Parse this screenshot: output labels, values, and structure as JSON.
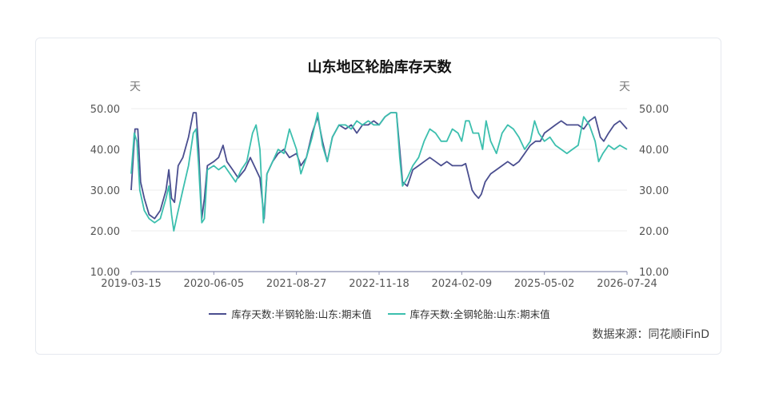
{
  "title": "山东地区轮胎库存天数",
  "left_unit": "天",
  "right_unit": "天",
  "source": "数据来源：同花顺iFinD",
  "colors": {
    "semi": "#4a4e8f",
    "full": "#3cbfae",
    "grid": "#ececec",
    "axis": "#8a8fb0"
  },
  "chart_data": {
    "type": "line",
    "title": "山东地区轮胎库存天数",
    "ylabel": "天",
    "ylim": [
      10,
      50
    ],
    "yticks": [
      "10.00",
      "20.00",
      "30.00",
      "40.00",
      "50.00"
    ],
    "x_range": [
      "2019-03-15",
      "2026-07-24"
    ],
    "xticks": [
      "2019-03-15",
      "2020-06-05",
      "2021-08-27",
      "2022-11-18",
      "2024-02-09",
      "2025-05-02",
      "2026-07-24"
    ],
    "grid": true,
    "legend_position": "bottom",
    "series": [
      {
        "name": "库存天数:半钢轮胎:山东:期末值",
        "color": "#4a4e8f",
        "points": [
          [
            "2019-03-15",
            30.0
          ],
          [
            "2019-04-05",
            45.0
          ],
          [
            "2019-04-20",
            45.0
          ],
          [
            "2019-05-05",
            32.0
          ],
          [
            "2019-05-25",
            28.0
          ],
          [
            "2019-06-20",
            24.0
          ],
          [
            "2019-07-20",
            23.0
          ],
          [
            "2019-08-20",
            25.0
          ],
          [
            "2019-09-20",
            30.0
          ],
          [
            "2019-10-05",
            35.0
          ],
          [
            "2019-10-20",
            28.0
          ],
          [
            "2019-11-05",
            27.0
          ],
          [
            "2019-11-25",
            36.0
          ],
          [
            "2019-12-20",
            38.0
          ],
          [
            "2020-01-20",
            43.0
          ],
          [
            "2020-02-15",
            49.0
          ],
          [
            "2020-03-01",
            49.0
          ],
          [
            "2020-03-15",
            40.0
          ],
          [
            "2020-04-01",
            23.0
          ],
          [
            "2020-04-15",
            28.0
          ],
          [
            "2020-05-01",
            36.0
          ],
          [
            "2020-06-05",
            37.0
          ],
          [
            "2020-07-01",
            38.0
          ],
          [
            "2020-07-25",
            41.0
          ],
          [
            "2020-08-15",
            37.0
          ],
          [
            "2020-09-15",
            35.0
          ],
          [
            "2020-10-15",
            33.0
          ],
          [
            "2020-11-20",
            35.0
          ],
          [
            "2020-12-20",
            38.0
          ],
          [
            "2021-01-20",
            35.0
          ],
          [
            "2021-02-10",
            33.0
          ],
          [
            "2021-03-05",
            23.0
          ],
          [
            "2021-03-20",
            34.0
          ],
          [
            "2021-04-20",
            37.0
          ],
          [
            "2021-05-20",
            39.0
          ],
          [
            "2021-06-20",
            40.0
          ],
          [
            "2021-07-20",
            38.0
          ],
          [
            "2021-08-27",
            39.0
          ],
          [
            "2021-09-20",
            36.0
          ],
          [
            "2021-10-20",
            38.0
          ],
          [
            "2021-11-20",
            44.0
          ],
          [
            "2021-12-20",
            48.0
          ],
          [
            "2022-01-15",
            42.0
          ],
          [
            "2022-02-10",
            37.0
          ],
          [
            "2022-03-10",
            43.0
          ],
          [
            "2022-04-15",
            46.0
          ],
          [
            "2022-05-20",
            45.0
          ],
          [
            "2022-06-20",
            46.0
          ],
          [
            "2022-07-20",
            44.0
          ],
          [
            "2022-08-20",
            46.0
          ],
          [
            "2022-09-20",
            46.0
          ],
          [
            "2022-10-20",
            47.0
          ],
          [
            "2022-11-18",
            46.0
          ],
          [
            "2022-12-20",
            48.0
          ],
          [
            "2023-01-20",
            49.0
          ],
          [
            "2023-02-20",
            49.0
          ],
          [
            "2023-03-10",
            40.0
          ],
          [
            "2023-03-25",
            32.0
          ],
          [
            "2023-04-20",
            31.0
          ],
          [
            "2023-05-20",
            35.0
          ],
          [
            "2023-06-20",
            36.0
          ],
          [
            "2023-07-20",
            37.0
          ],
          [
            "2023-08-20",
            38.0
          ],
          [
            "2023-09-20",
            37.0
          ],
          [
            "2023-10-20",
            36.0
          ],
          [
            "2023-11-20",
            37.0
          ],
          [
            "2023-12-20",
            36.0
          ],
          [
            "2024-01-20",
            36.0
          ],
          [
            "2024-02-09",
            36.0
          ],
          [
            "2024-03-01",
            36.5
          ],
          [
            "2024-03-20",
            33.0
          ],
          [
            "2024-04-05",
            30.0
          ],
          [
            "2024-04-20",
            29.0
          ],
          [
            "2024-05-10",
            28.0
          ],
          [
            "2024-05-25",
            29.0
          ],
          [
            "2024-06-15",
            32.0
          ],
          [
            "2024-07-15",
            34.0
          ],
          [
            "2024-08-15",
            35.0
          ],
          [
            "2024-09-15",
            36.0
          ],
          [
            "2024-10-15",
            37.0
          ],
          [
            "2024-11-15",
            36.0
          ],
          [
            "2024-12-15",
            37.0
          ],
          [
            "2025-01-15",
            39.0
          ],
          [
            "2025-02-15",
            41.0
          ],
          [
            "2025-03-15",
            42.0
          ],
          [
            "2025-04-10",
            42.0
          ],
          [
            "2025-05-02",
            44.0
          ],
          [
            "2025-06-01",
            45.0
          ],
          [
            "2025-07-01",
            46.0
          ],
          [
            "2025-08-01",
            47.0
          ],
          [
            "2025-09-01",
            46.0
          ],
          [
            "2025-10-01",
            46.0
          ],
          [
            "2025-11-01",
            46.0
          ],
          [
            "2025-12-01",
            45.0
          ],
          [
            "2026-01-01",
            47.0
          ],
          [
            "2026-02-01",
            48.0
          ],
          [
            "2026-03-01",
            43.0
          ],
          [
            "2026-03-20",
            42.0
          ],
          [
            "2026-04-15",
            44.0
          ],
          [
            "2026-05-15",
            46.0
          ],
          [
            "2026-06-15",
            47.0
          ],
          [
            "2026-07-24",
            45.0
          ]
        ]
      },
      {
        "name": "库存天数:全钢轮胎:山东:期末值",
        "color": "#3cbfae",
        "points": [
          [
            "2019-03-15",
            34.0
          ],
          [
            "2019-04-01",
            44.0
          ],
          [
            "2019-04-15",
            42.0
          ],
          [
            "2019-05-01",
            30.0
          ],
          [
            "2019-05-25",
            25.0
          ],
          [
            "2019-06-20",
            23.0
          ],
          [
            "2019-07-20",
            22.0
          ],
          [
            "2019-08-20",
            23.0
          ],
          [
            "2019-09-20",
            28.0
          ],
          [
            "2019-10-05",
            31.0
          ],
          [
            "2019-10-20",
            24.0
          ],
          [
            "2019-11-01",
            20.0
          ],
          [
            "2019-11-20",
            24.0
          ],
          [
            "2019-12-20",
            30.0
          ],
          [
            "2020-01-20",
            36.0
          ],
          [
            "2020-02-15",
            44.0
          ],
          [
            "2020-03-01",
            45.0
          ],
          [
            "2020-03-15",
            36.0
          ],
          [
            "2020-04-01",
            22.0
          ],
          [
            "2020-04-15",
            23.0
          ],
          [
            "2020-05-01",
            35.0
          ],
          [
            "2020-06-05",
            36.0
          ],
          [
            "2020-07-01",
            35.0
          ],
          [
            "2020-08-01",
            36.0
          ],
          [
            "2020-09-01",
            34.0
          ],
          [
            "2020-10-01",
            32.0
          ],
          [
            "2020-11-01",
            35.0
          ],
          [
            "2020-12-01",
            37.0
          ],
          [
            "2021-01-01",
            44.0
          ],
          [
            "2021-01-20",
            46.0
          ],
          [
            "2021-02-10",
            40.0
          ],
          [
            "2021-03-01",
            22.0
          ],
          [
            "2021-03-20",
            34.0
          ],
          [
            "2021-04-20",
            37.0
          ],
          [
            "2021-05-20",
            40.0
          ],
          [
            "2021-06-20",
            39.0
          ],
          [
            "2021-07-20",
            45.0
          ],
          [
            "2021-08-27",
            40.0
          ],
          [
            "2021-09-20",
            34.0
          ],
          [
            "2021-10-20",
            38.0
          ],
          [
            "2021-11-20",
            43.0
          ],
          [
            "2021-12-20",
            49.0
          ],
          [
            "2022-01-15",
            41.0
          ],
          [
            "2022-02-10",
            37.0
          ],
          [
            "2022-03-10",
            43.0
          ],
          [
            "2022-04-15",
            46.0
          ],
          [
            "2022-05-20",
            46.0
          ],
          [
            "2022-06-20",
            45.0
          ],
          [
            "2022-07-20",
            47.0
          ],
          [
            "2022-08-20",
            46.0
          ],
          [
            "2022-09-20",
            47.0
          ],
          [
            "2022-10-20",
            46.0
          ],
          [
            "2022-11-18",
            46.0
          ],
          [
            "2022-12-20",
            48.0
          ],
          [
            "2023-01-20",
            49.0
          ],
          [
            "2023-02-20",
            49.0
          ],
          [
            "2023-03-10",
            38.0
          ],
          [
            "2023-03-25",
            31.0
          ],
          [
            "2023-04-20",
            33.0
          ],
          [
            "2023-05-20",
            36.0
          ],
          [
            "2023-06-20",
            38.0
          ],
          [
            "2023-07-20",
            42.0
          ],
          [
            "2023-08-20",
            45.0
          ],
          [
            "2023-09-20",
            44.0
          ],
          [
            "2023-10-20",
            42.0
          ],
          [
            "2023-11-20",
            42.0
          ],
          [
            "2023-12-20",
            45.0
          ],
          [
            "2024-01-20",
            44.0
          ],
          [
            "2024-02-09",
            42.0
          ],
          [
            "2024-03-01",
            47.0
          ],
          [
            "2024-03-20",
            47.0
          ],
          [
            "2024-04-10",
            44.0
          ],
          [
            "2024-05-10",
            44.0
          ],
          [
            "2024-06-01",
            40.0
          ],
          [
            "2024-06-20",
            47.0
          ],
          [
            "2024-07-15",
            42.0
          ],
          [
            "2024-08-15",
            39.0
          ],
          [
            "2024-09-15",
            44.0
          ],
          [
            "2024-10-15",
            46.0
          ],
          [
            "2024-11-15",
            45.0
          ],
          [
            "2024-12-15",
            43.0
          ],
          [
            "2025-01-15",
            40.0
          ],
          [
            "2025-02-15",
            42.0
          ],
          [
            "2025-03-10",
            47.0
          ],
          [
            "2025-04-01",
            44.0
          ],
          [
            "2025-05-02",
            42.0
          ],
          [
            "2025-06-01",
            43.0
          ],
          [
            "2025-07-01",
            41.0
          ],
          [
            "2025-08-01",
            40.0
          ],
          [
            "2025-09-01",
            39.0
          ],
          [
            "2025-10-01",
            40.0
          ],
          [
            "2025-11-01",
            41.0
          ],
          [
            "2025-12-01",
            48.0
          ],
          [
            "2026-01-01",
            46.0
          ],
          [
            "2026-02-01",
            42.0
          ],
          [
            "2026-02-20",
            37.0
          ],
          [
            "2026-03-15",
            39.0
          ],
          [
            "2026-04-15",
            41.0
          ],
          [
            "2026-05-15",
            40.0
          ],
          [
            "2026-06-15",
            41.0
          ],
          [
            "2026-07-24",
            40.0
          ]
        ]
      }
    ]
  }
}
